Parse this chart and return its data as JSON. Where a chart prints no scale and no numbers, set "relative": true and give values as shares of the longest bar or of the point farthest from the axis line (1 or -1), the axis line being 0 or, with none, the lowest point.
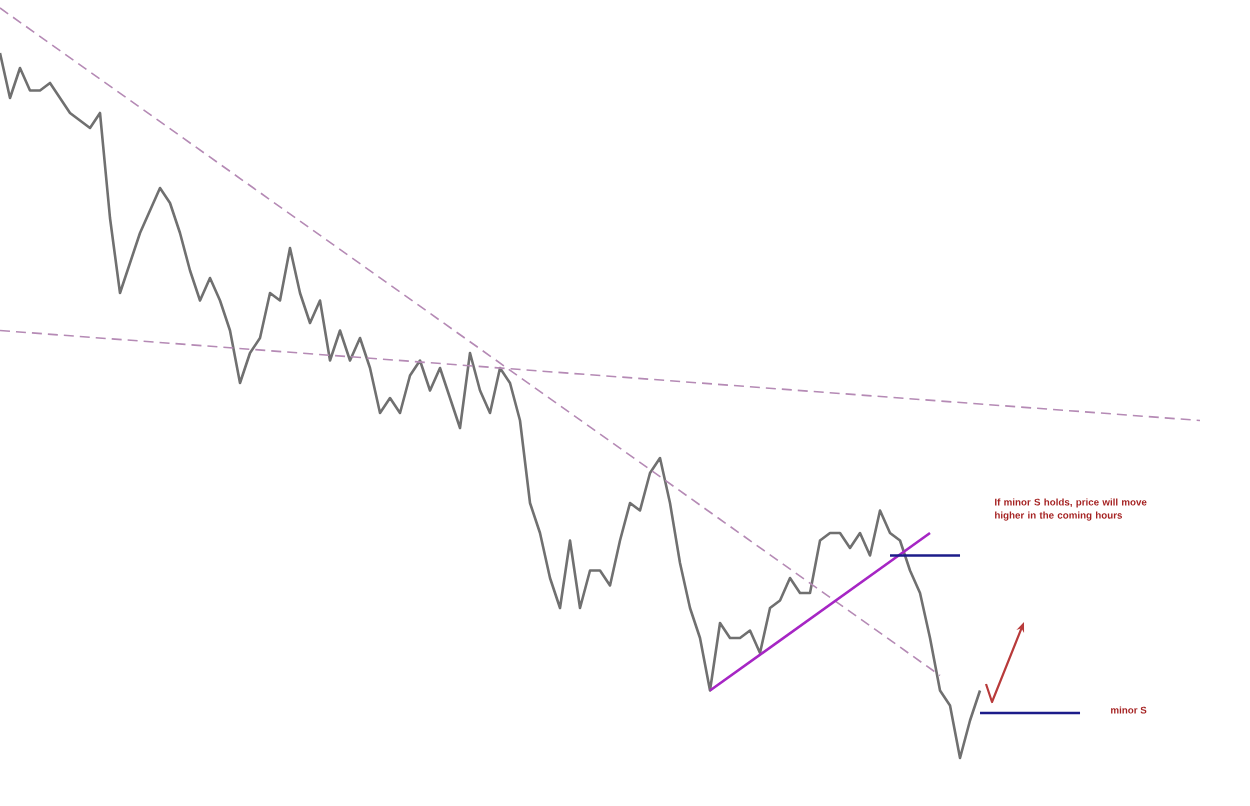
{
  "chart_data": {
    "type": "line",
    "relative": true,
    "tick_labels": false,
    "categories": [
      null,
      null,
      null,
      null,
      null,
      null,
      null,
      null,
      null,
      null,
      null,
      null,
      null,
      null,
      null,
      null,
      null,
      null,
      null,
      null,
      null,
      null,
      null,
      null,
      null,
      null,
      null,
      null,
      null,
      null,
      null,
      null,
      null,
      null,
      null,
      null,
      null,
      null,
      null,
      null,
      null,
      null,
      null,
      null,
      null,
      null,
      null,
      null,
      null,
      null,
      null,
      null,
      null,
      null,
      null,
      null,
      null,
      null,
      null,
      null,
      null,
      null,
      null,
      null,
      null,
      null,
      null,
      null,
      null,
      null,
      null,
      null,
      null,
      null,
      null,
      null,
      null,
      null,
      null,
      null,
      null,
      null,
      null,
      null,
      null,
      null,
      null,
      null,
      null,
      null,
      null,
      null,
      null,
      null,
      null,
      null,
      null,
      null,
      null,
      null,
      null,
      null,
      null,
      null,
      null,
      null,
      null,
      null,
      null,
      null,
      null,
      null,
      null,
      null,
      null,
      null,
      null,
      null,
      null,
      null,
      null
    ],
    "series": [
      {
        "color": "#707070",
        "values": [
          0.94,
          0.88,
          0.92,
          0.89,
          0.89,
          0.9,
          0.88,
          0.86,
          0.85,
          0.84,
          0.86,
          0.72,
          0.62,
          0.66,
          0.7,
          0.73,
          0.76,
          0.74,
          0.7,
          0.65,
          0.61,
          0.64,
          0.61,
          0.57,
          0.5,
          0.54,
          0.56,
          0.62,
          0.61,
          0.68,
          0.62,
          0.58,
          0.61,
          0.53,
          0.57,
          0.53,
          0.56,
          0.52,
          0.46,
          0.48,
          0.46,
          0.51,
          0.53,
          0.49,
          0.52,
          0.48,
          0.44,
          0.54,
          0.49,
          0.46,
          0.52,
          0.5,
          0.45,
          0.34,
          0.3,
          0.24,
          0.2,
          0.29,
          0.2,
          0.25,
          0.25,
          0.23,
          0.29,
          0.34,
          0.33,
          0.38,
          0.4,
          0.34,
          0.26,
          0.2,
          0.16,
          0.09,
          0.18,
          0.16,
          0.16,
          0.17,
          0.14,
          0.2,
          0.21,
          0.24,
          0.22,
          0.22,
          0.29,
          0.3,
          0.3,
          0.28,
          0.3,
          0.27,
          0.33,
          0.3,
          0.29,
          0.25,
          0.22,
          0.16,
          0.09,
          0.07,
          0,
          0.05,
          0.09,
          null,
          null,
          null,
          null,
          null,
          null,
          null,
          null,
          null,
          null,
          null,
          null,
          null,
          null,
          null,
          null,
          null,
          null,
          null,
          null,
          null,
          null
        ]
      },
      {
        "color": "#b58ab5",
        "line_style": "dashed",
        "values": [
          1.0,
          null,
          null,
          null,
          null,
          null,
          null,
          null,
          null,
          null,
          null,
          null,
          null,
          null,
          null,
          null,
          null,
          null,
          null,
          null,
          null,
          null,
          null,
          null,
          null,
          null,
          null,
          null,
          null,
          null,
          null,
          null,
          null,
          null,
          null,
          null,
          null,
          null,
          null,
          null,
          null,
          null,
          null,
          null,
          null,
          null,
          null,
          null,
          null,
          null,
          null,
          null,
          null,
          null,
          null,
          null,
          null,
          null,
          null,
          null,
          null,
          null,
          null,
          null,
          null,
          null,
          null,
          null,
          null,
          null,
          null,
          null,
          null,
          null,
          null,
          null,
          null,
          null,
          null,
          null,
          null,
          null,
          null,
          null,
          null,
          null,
          null,
          null,
          null,
          null,
          null,
          null,
          null,
          null,
          0.11,
          null,
          null,
          null,
          null,
          null,
          null,
          null,
          null,
          null,
          null,
          null,
          null,
          null,
          null,
          null,
          null,
          null,
          null,
          null,
          null,
          null,
          null,
          null,
          null,
          null,
          null
        ]
      },
      {
        "color": "#b58ab5",
        "line_style": "dashed",
        "values": [
          0.57,
          null,
          null,
          null,
          null,
          null,
          null,
          null,
          null,
          null,
          null,
          null,
          null,
          null,
          null,
          null,
          null,
          null,
          null,
          null,
          null,
          null,
          null,
          null,
          null,
          null,
          null,
          null,
          null,
          null,
          null,
          null,
          null,
          null,
          null,
          null,
          null,
          null,
          null,
          null,
          null,
          null,
          null,
          null,
          null,
          null,
          null,
          null,
          null,
          null,
          null,
          null,
          null,
          null,
          null,
          null,
          null,
          null,
          null,
          null,
          null,
          null,
          null,
          null,
          null,
          null,
          null,
          null,
          null,
          null,
          null,
          null,
          null,
          null,
          null,
          null,
          null,
          null,
          null,
          null,
          null,
          null,
          null,
          null,
          null,
          null,
          null,
          null,
          null,
          null,
          null,
          null,
          null,
          null,
          null,
          null,
          null,
          null,
          null,
          null,
          null,
          null,
          null,
          null,
          null,
          null,
          null,
          null,
          null,
          null,
          null,
          null,
          null,
          null,
          null,
          null,
          null,
          null,
          null,
          null,
          0.45
        ]
      },
      {
        "color": "#a626c4",
        "values": [
          null,
          null,
          null,
          null,
          null,
          null,
          null,
          null,
          null,
          null,
          null,
          null,
          null,
          null,
          null,
          null,
          null,
          null,
          null,
          null,
          null,
          null,
          null,
          null,
          null,
          null,
          null,
          null,
          null,
          null,
          null,
          null,
          null,
          null,
          null,
          null,
          null,
          null,
          null,
          null,
          null,
          null,
          null,
          null,
          null,
          null,
          null,
          null,
          null,
          null,
          null,
          null,
          null,
          null,
          null,
          null,
          null,
          null,
          null,
          null,
          null,
          null,
          null,
          null,
          null,
          null,
          null,
          null,
          null,
          null,
          null,
          0.09,
          null,
          null,
          null,
          null,
          null,
          null,
          null,
          null,
          null,
          null,
          null,
          null,
          null,
          null,
          null,
          null,
          null,
          null,
          null,
          null,
          null,
          0.3,
          null,
          null,
          null,
          null,
          null,
          null,
          null,
          null,
          null,
          null,
          null,
          null,
          null,
          null,
          null,
          null,
          null,
          null,
          null,
          null,
          null,
          null,
          null,
          null,
          null,
          null,
          null
        ]
      },
      {
        "color": "#1c1c8a",
        "values": [
          null,
          null,
          null,
          null,
          null,
          null,
          null,
          null,
          null,
          null,
          null,
          null,
          null,
          null,
          null,
          null,
          null,
          null,
          null,
          null,
          null,
          null,
          null,
          null,
          null,
          null,
          null,
          null,
          null,
          null,
          null,
          null,
          null,
          null,
          null,
          null,
          null,
          null,
          null,
          null,
          null,
          null,
          null,
          null,
          null,
          null,
          null,
          null,
          null,
          null,
          null,
          null,
          null,
          null,
          null,
          null,
          null,
          null,
          null,
          null,
          null,
          null,
          null,
          null,
          null,
          null,
          null,
          null,
          null,
          null,
          null,
          null,
          null,
          null,
          null,
          null,
          null,
          null,
          null,
          null,
          null,
          null,
          null,
          null,
          null,
          null,
          null,
          null,
          null,
          0.27,
          null,
          null,
          null,
          null,
          null,
          null,
          0.27,
          null,
          null,
          null,
          null,
          null,
          null,
          null,
          null,
          null,
          null,
          null,
          null,
          null,
          null,
          null,
          null,
          null,
          null,
          null,
          null,
          null,
          null,
          null,
          null
        ]
      },
      {
        "color": "#1c1c8a",
        "values": [
          null,
          null,
          null,
          null,
          null,
          null,
          null,
          null,
          null,
          null,
          null,
          null,
          null,
          null,
          null,
          null,
          null,
          null,
          null,
          null,
          null,
          null,
          null,
          null,
          null,
          null,
          null,
          null,
          null,
          null,
          null,
          null,
          null,
          null,
          null,
          null,
          null,
          null,
          null,
          null,
          null,
          null,
          null,
          null,
          null,
          null,
          null,
          null,
          null,
          null,
          null,
          null,
          null,
          null,
          null,
          null,
          null,
          null,
          null,
          null,
          null,
          null,
          null,
          null,
          null,
          null,
          null,
          null,
          null,
          null,
          null,
          null,
          null,
          null,
          null,
          null,
          null,
          null,
          null,
          null,
          null,
          null,
          null,
          null,
          null,
          null,
          null,
          null,
          null,
          null,
          null,
          null,
          null,
          null,
          null,
          null,
          null,
          null,
          0.06,
          null,
          null,
          null,
          null,
          null,
          null,
          null,
          null,
          null,
          0.06,
          null,
          null,
          null,
          null,
          null,
          null,
          null,
          null,
          null,
          null,
          null,
          null
        ]
      }
    ],
    "annotations": [
      "If minor S holds, price will move higher in the coming hours",
      "minor S"
    ]
  }
}
